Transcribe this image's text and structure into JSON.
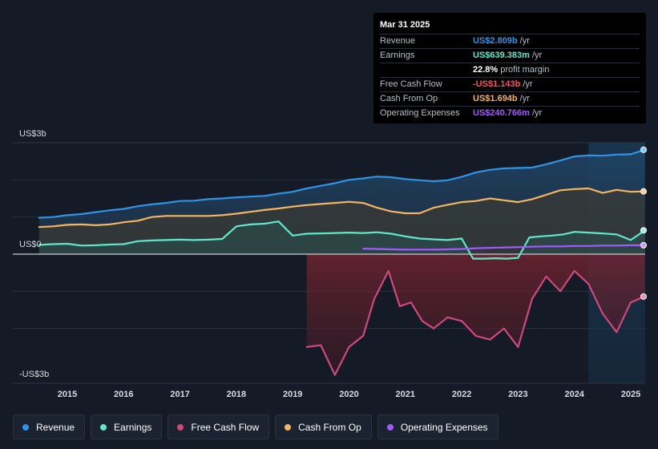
{
  "tooltip": {
    "date": "Mar 31 2025",
    "rows": [
      {
        "label": "Revenue",
        "value": "US$2.809b",
        "unit": "/yr",
        "color": "#2f94e5"
      },
      {
        "label": "Earnings",
        "value": "US$639.383m",
        "unit": "/yr",
        "color": "#5ee8c9"
      },
      {
        "label": "",
        "value": "22.8%",
        "unit": "profit margin",
        "color": "#ffffff"
      },
      {
        "label": "Free Cash Flow",
        "value": "-US$1.143b",
        "unit": "/yr",
        "color": "#ff4f5e"
      },
      {
        "label": "Cash From Op",
        "value": "US$1.694b",
        "unit": "/yr",
        "color": "#f3b560"
      },
      {
        "label": "Operating Expenses",
        "value": "US$240.766m",
        "unit": "/yr",
        "color": "#a259ff"
      }
    ]
  },
  "legend": [
    {
      "label": "Revenue",
      "color": "#2f94e5"
    },
    {
      "label": "Earnings",
      "color": "#5ee8c9"
    },
    {
      "label": "Free Cash Flow",
      "color": "#d1477a"
    },
    {
      "label": "Cash From Op",
      "color": "#f3b560"
    },
    {
      "label": "Operating Expenses",
      "color": "#a259ff"
    }
  ],
  "chart_data": {
    "type": "area",
    "y_tick_labels": [
      "US$3b",
      "US$0",
      "-US$3b"
    ],
    "x_tick_labels": [
      "2015",
      "2016",
      "2017",
      "2018",
      "2019",
      "2020",
      "2021",
      "2022",
      "2023",
      "2024",
      "2025"
    ],
    "ylim": [
      -3.5,
      3
    ],
    "xlim": [
      2014.0,
      2025.35
    ],
    "legend_position": "bottom",
    "grid": true,
    "highlight_start": 2024.25,
    "series": [
      {
        "name": "Revenue",
        "color": "#2f94e5",
        "x": [
          2014.5,
          2014.75,
          2015.0,
          2015.25,
          2015.5,
          2015.75,
          2016.0,
          2016.25,
          2016.5,
          2016.75,
          2017.0,
          2017.25,
          2017.5,
          2017.75,
          2018.0,
          2018.25,
          2018.5,
          2018.75,
          2019.0,
          2019.25,
          2019.5,
          2019.75,
          2020.0,
          2020.25,
          2020.5,
          2020.75,
          2021.0,
          2021.25,
          2021.5,
          2021.75,
          2022.0,
          2022.25,
          2022.5,
          2022.75,
          2023.0,
          2023.25,
          2023.5,
          2023.75,
          2024.0,
          2024.25,
          2024.5,
          2024.75,
          2025.0,
          2025.25
        ],
        "y": [
          0.98,
          1.0,
          1.05,
          1.08,
          1.13,
          1.18,
          1.22,
          1.29,
          1.34,
          1.38,
          1.43,
          1.44,
          1.48,
          1.5,
          1.53,
          1.55,
          1.57,
          1.63,
          1.68,
          1.77,
          1.84,
          1.91,
          2.0,
          2.04,
          2.09,
          2.07,
          2.02,
          1.99,
          1.96,
          1.99,
          2.08,
          2.2,
          2.27,
          2.31,
          2.32,
          2.33,
          2.42,
          2.52,
          2.63,
          2.66,
          2.65,
          2.68,
          2.69,
          2.81
        ]
      },
      {
        "name": "Earnings",
        "color": "#5ee8c9",
        "x": [
          2014.5,
          2014.75,
          2015.0,
          2015.25,
          2015.5,
          2015.75,
          2016.0,
          2016.25,
          2016.5,
          2016.75,
          2017.0,
          2017.25,
          2017.5,
          2017.75,
          2018.0,
          2018.25,
          2018.5,
          2018.75,
          2019.0,
          2019.25,
          2019.5,
          2019.75,
          2020.0,
          2020.25,
          2020.5,
          2020.75,
          2021.0,
          2021.25,
          2021.5,
          2021.75,
          2022.0,
          2022.2,
          2022.4,
          2022.6,
          2022.8,
          2023.0,
          2023.2,
          2023.4,
          2023.6,
          2023.8,
          2024.0,
          2024.25,
          2024.5,
          2024.75,
          2025.0,
          2025.25
        ],
        "y": [
          0.25,
          0.27,
          0.28,
          0.23,
          0.24,
          0.26,
          0.27,
          0.35,
          0.37,
          0.38,
          0.39,
          0.38,
          0.39,
          0.41,
          0.75,
          0.8,
          0.82,
          0.88,
          0.5,
          0.55,
          0.56,
          0.57,
          0.58,
          0.57,
          0.59,
          0.55,
          0.48,
          0.42,
          0.4,
          0.38,
          0.42,
          -0.12,
          -0.12,
          -0.11,
          -0.12,
          -0.1,
          0.45,
          0.48,
          0.5,
          0.53,
          0.6,
          0.58,
          0.56,
          0.53,
          0.38,
          0.64
        ]
      },
      {
        "name": "Free Cash Flow",
        "color": "#d1477a",
        "x": [
          2019.25,
          2019.5,
          2019.75,
          2020.0,
          2020.25,
          2020.45,
          2020.7,
          2020.9,
          2021.1,
          2021.3,
          2021.5,
          2021.75,
          2022.0,
          2022.25,
          2022.5,
          2022.75,
          2023.0,
          2023.25,
          2023.5,
          2023.75,
          2024.0,
          2024.25,
          2024.5,
          2024.75,
          2025.0,
          2025.25
        ],
        "y": [
          -2.5,
          -2.45,
          -3.25,
          -2.5,
          -2.2,
          -1.2,
          -0.45,
          -1.4,
          -1.3,
          -1.8,
          -2.0,
          -1.7,
          -1.8,
          -2.2,
          -2.3,
          -2.0,
          -2.5,
          -1.2,
          -0.6,
          -1.0,
          -0.45,
          -0.8,
          -1.6,
          -2.1,
          -1.3,
          -1.14
        ]
      },
      {
        "name": "Cash From Op",
        "color": "#f3b560",
        "x": [
          2014.5,
          2014.75,
          2015.0,
          2015.25,
          2015.5,
          2015.75,
          2016.0,
          2016.25,
          2016.5,
          2016.75,
          2017.0,
          2017.25,
          2017.5,
          2017.75,
          2018.0,
          2018.25,
          2018.5,
          2018.75,
          2019.0,
          2019.25,
          2019.5,
          2019.75,
          2020.0,
          2020.25,
          2020.5,
          2020.75,
          2021.0,
          2021.25,
          2021.5,
          2021.75,
          2022.0,
          2022.25,
          2022.5,
          2022.75,
          2023.0,
          2023.25,
          2023.5,
          2023.75,
          2024.0,
          2024.25,
          2024.5,
          2024.75,
          2025.0,
          2025.25
        ],
        "y": [
          0.73,
          0.75,
          0.79,
          0.8,
          0.78,
          0.8,
          0.86,
          0.9,
          1.0,
          1.03,
          1.03,
          1.03,
          1.03,
          1.05,
          1.09,
          1.14,
          1.19,
          1.23,
          1.28,
          1.32,
          1.35,
          1.38,
          1.41,
          1.38,
          1.25,
          1.15,
          1.1,
          1.1,
          1.25,
          1.33,
          1.4,
          1.43,
          1.5,
          1.45,
          1.4,
          1.48,
          1.6,
          1.72,
          1.75,
          1.77,
          1.65,
          1.73,
          1.68,
          1.69
        ]
      },
      {
        "name": "Operating Expenses",
        "color": "#a259ff",
        "x": [
          2020.25,
          2020.5,
          2020.75,
          2021.0,
          2021.25,
          2021.5,
          2021.75,
          2022.0,
          2022.25,
          2022.5,
          2022.75,
          2023.0,
          2023.25,
          2023.5,
          2023.75,
          2024.0,
          2024.25,
          2024.5,
          2024.75,
          2025.0,
          2025.25
        ],
        "y": [
          0.15,
          0.14,
          0.13,
          0.12,
          0.12,
          0.12,
          0.13,
          0.14,
          0.16,
          0.17,
          0.18,
          0.19,
          0.2,
          0.21,
          0.21,
          0.22,
          0.22,
          0.23,
          0.23,
          0.24,
          0.24
        ]
      }
    ]
  }
}
